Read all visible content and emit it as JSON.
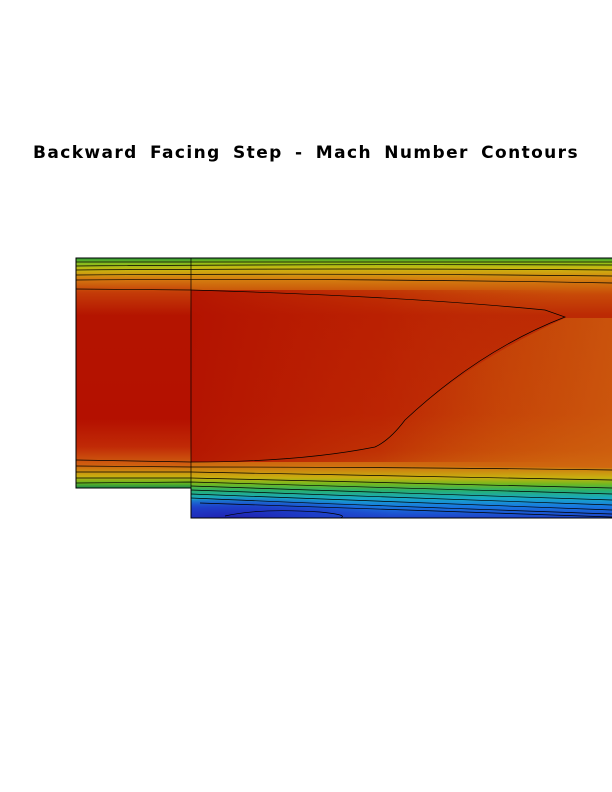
{
  "chart_data": {
    "type": "heatmap",
    "title": "Backward Facing Step - Mach Number Contours",
    "xlabel": "",
    "ylabel": "",
    "colormap": [
      "#1e3ec8",
      "#1878e0",
      "#18b8c8",
      "#30c060",
      "#88c818",
      "#c8c010",
      "#d89010",
      "#d06010",
      "#c03808",
      "#b00c00"
    ],
    "colormap_note_values": "blue = low Mach, red = high Mach",
    "grid": false,
    "legend": "none",
    "geometry_features": [
      "inlet channel",
      "step corner",
      "expanded channel"
    ],
    "contour_line_color": "#000000"
  }
}
